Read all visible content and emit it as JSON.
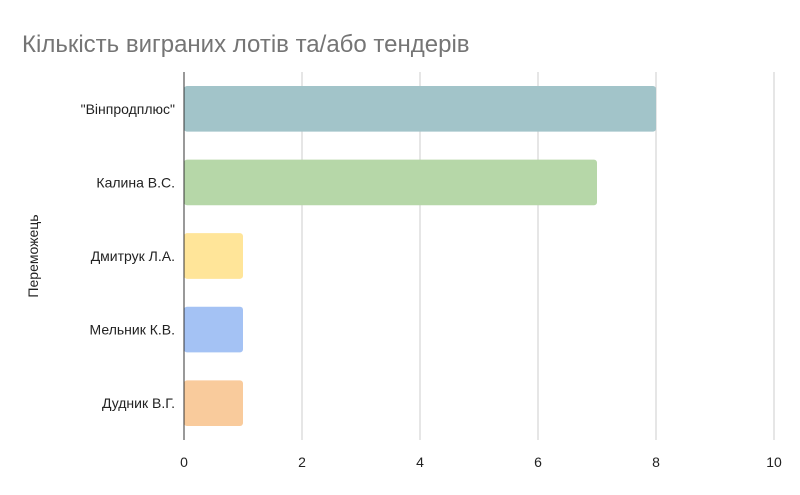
{
  "chart_data": {
    "type": "bar",
    "orientation": "horizontal",
    "title": "Кількість виграних лотів та/або тендерів",
    "xlabel": "",
    "ylabel": "Переможець",
    "categories": [
      "\"Вінпродплюс\"",
      "Калина В.С.",
      "Дмитрук Л.А.",
      "Мельник К.В.",
      "Дудник В.Г."
    ],
    "values": [
      8,
      7,
      1,
      1,
      1
    ],
    "colors": [
      "#a2c4c9",
      "#b6d7a8",
      "#ffe599",
      "#a4c2f4",
      "#f9cb9c"
    ],
    "xlim": [
      0,
      10
    ],
    "xticks": [
      0,
      2,
      4,
      6,
      8,
      10
    ],
    "grid": true,
    "legend": "none"
  }
}
